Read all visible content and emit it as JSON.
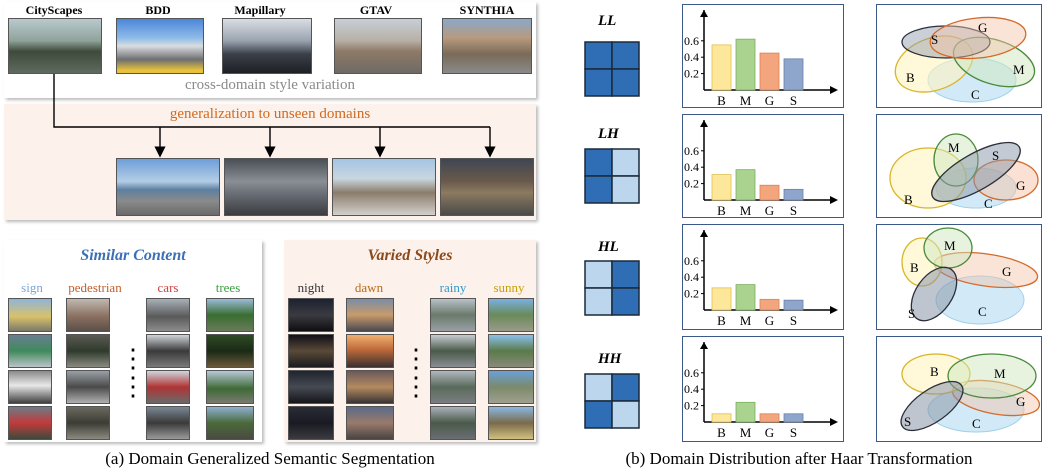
{
  "left": {
    "domains": [
      "CityScapes",
      "BDD",
      "Mapillary",
      "GTAV",
      "SYNTHIA"
    ],
    "style_variation_text": "cross-domain style variation",
    "generalization_text": "generalization to unseen domains",
    "similar_title": "Similar Content",
    "varied_title": "Varied Styles",
    "content_labels": [
      "sign",
      "pedestrian",
      "cars",
      "trees"
    ],
    "content_colors": [
      "#7aa6d6",
      "#c0602a",
      "#d04040",
      "#3aa040"
    ],
    "style_labels": [
      "night",
      "dawn",
      "rainy",
      "sunny"
    ],
    "style_colors": [
      "#333333",
      "#b86a18",
      "#2a9bd0",
      "#c9a000"
    ],
    "ellipsis": "⋮",
    "caption": "(a) Domain Generalized Semantic Segmentation"
  },
  "right": {
    "caption": "(b) Domain Distribution after Haar Transformation",
    "rows": [
      {
        "label": "LL",
        "quad": [
          1,
          1,
          1,
          1
        ]
      },
      {
        "label": "LH",
        "quad": [
          1,
          0,
          1,
          0
        ]
      },
      {
        "label": "HL",
        "quad": [
          0,
          1,
          0,
          1
        ]
      },
      {
        "label": "HH",
        "quad": [
          0,
          1,
          1,
          0
        ]
      }
    ],
    "ellipse_labels": [
      "B",
      "M",
      "G",
      "S",
      "C"
    ],
    "colors": {
      "dark_blue": "#2f6eb5",
      "light_blue": "#bcd6ee",
      "bar_b": "#fde79a",
      "bar_m": "#a9d38f",
      "bar_g": "#f3a57e",
      "bar_s": "#8fa6cc"
    }
  },
  "chart_data": [
    {
      "type": "bar",
      "title": "LL",
      "categories": [
        "B",
        "M",
        "G",
        "S"
      ],
      "values": [
        0.55,
        0.62,
        0.45,
        0.38
      ],
      "yticks": [
        0.2,
        0.4,
        0.6
      ]
    },
    {
      "type": "bar",
      "title": "LH",
      "categories": [
        "B",
        "M",
        "G",
        "S"
      ],
      "values": [
        0.31,
        0.37,
        0.18,
        0.13
      ],
      "yticks": [
        0.2,
        0.4,
        0.6
      ]
    },
    {
      "type": "bar",
      "title": "HL",
      "categories": [
        "B",
        "M",
        "G",
        "S"
      ],
      "values": [
        0.27,
        0.31,
        0.13,
        0.12
      ],
      "yticks": [
        0.2,
        0.4,
        0.6
      ]
    },
    {
      "type": "bar",
      "title": "HH",
      "categories": [
        "B",
        "M",
        "G",
        "S"
      ],
      "values": [
        0.1,
        0.24,
        0.1,
        0.1
      ],
      "yticks": [
        0.2,
        0.4,
        0.6
      ]
    }
  ]
}
